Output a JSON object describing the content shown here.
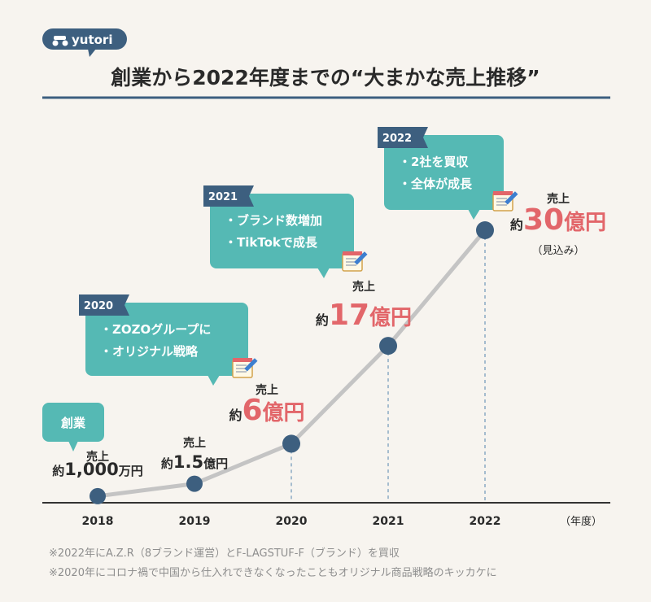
{
  "brand": {
    "name": "yutori",
    "icon": "motorbike-logo-icon"
  },
  "title": "創業から2022年度までの“大まかな売上推移”",
  "colors": {
    "background": "#f7f4ef",
    "teal": "#55b9b4",
    "navy": "#3d5f7f",
    "accent": "#e2666a",
    "line": "#c4c4c4",
    "text": "#2a2a2a",
    "note": "#8e8e8e"
  },
  "chart_data": {
    "type": "line",
    "x": [
      "2018",
      "2019",
      "2020",
      "2021",
      "2022"
    ],
    "y": [
      0.1,
      1.5,
      6,
      17,
      30
    ],
    "x_unit": "（年度）",
    "y_unit": "億円",
    "value_labels": [
      {
        "top": "売上",
        "prefix": "約",
        "value": "1,000",
        "suffix": "万円",
        "big": false
      },
      {
        "top": "売上",
        "prefix": "約",
        "value": "1.5",
        "suffix": "億円",
        "big": false
      },
      {
        "top": "売上",
        "prefix": "約",
        "value": "6",
        "suffix": "億円",
        "big": true
      },
      {
        "top": "売上",
        "prefix": "約",
        "value": "17",
        "suffix": "億円",
        "big": true
      },
      {
        "top": "売上",
        "prefix": "約",
        "value": "30",
        "suffix": "億円",
        "big": true,
        "sub": "（見込み）"
      }
    ],
    "annotations": [
      {
        "year": "",
        "label": "創業",
        "lines": []
      },
      {
        "year": "2020",
        "lines": [
          "・ZOZOグループに",
          "・オリジナル戦略"
        ]
      },
      {
        "year": "2021",
        "lines": [
          "・ブランド数増加",
          "・TikTokで成長"
        ]
      },
      {
        "year": "2022",
        "lines": [
          "・2社を買収",
          "・全体が成長"
        ]
      }
    ]
  },
  "notes": [
    "※2022年にA.Z.R（8ブランド運営）とF-LAGSTUF-F（ブランド）を買収",
    "※2020年にコロナ禍で中国から仕入れできなくなったこともオリジナル商品戦略のキッカケに"
  ]
}
